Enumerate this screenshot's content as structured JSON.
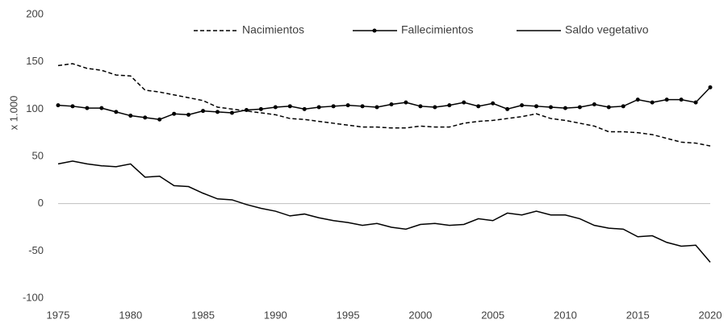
{
  "chart_data": {
    "type": "line",
    "ylabel": "x 1.000",
    "x": [
      1975,
      1976,
      1977,
      1978,
      1979,
      1980,
      1981,
      1982,
      1983,
      1984,
      1985,
      1986,
      1987,
      1988,
      1989,
      1990,
      1991,
      1992,
      1993,
      1994,
      1995,
      1996,
      1997,
      1998,
      1999,
      2000,
      2001,
      2002,
      2003,
      2004,
      2005,
      2006,
      2007,
      2008,
      2009,
      2010,
      2011,
      2012,
      2013,
      2014,
      2015,
      2016,
      2017,
      2018,
      2019,
      2020
    ],
    "series": [
      {
        "name": "Nacimientos",
        "color": "#000000",
        "dash": "dashed",
        "marker": false,
        "values": [
          146,
          148,
          143,
          141,
          136,
          135,
          120,
          118,
          115,
          112,
          109,
          102,
          100,
          98,
          96,
          94,
          90,
          89,
          87,
          85,
          83,
          81,
          81,
          80,
          80,
          82,
          81,
          81,
          85,
          87,
          88,
          90,
          92,
          95,
          90,
          88,
          85,
          82,
          76,
          76,
          75,
          73,
          69,
          65,
          64,
          61
        ]
      },
      {
        "name": "Fallecimientos",
        "color": "#000000",
        "dash": "solid",
        "marker": true,
        "values": [
          104,
          103,
          101,
          101,
          97,
          93,
          91,
          89,
          95,
          94,
          98,
          97,
          96,
          99,
          100,
          102,
          103,
          100,
          102,
          103,
          104,
          103,
          102,
          105,
          107,
          103,
          102,
          104,
          107,
          103,
          106,
          100,
          104,
          103,
          102,
          101,
          102,
          105,
          102,
          103,
          110,
          107,
          110,
          110,
          107,
          123
        ]
      },
      {
        "name": "Saldo vegetativo",
        "color": "#000000",
        "dash": "solid",
        "marker": false,
        "values": [
          42,
          45,
          42,
          40,
          39,
          42,
          28,
          29,
          19,
          18,
          11,
          5,
          4,
          -1,
          -5,
          -8,
          -13,
          -11,
          -15,
          -18,
          -20,
          -23,
          -21,
          -25,
          -27,
          -22,
          -21,
          -23,
          -22,
          -16,
          -18,
          -10,
          -12,
          -8,
          -12,
          -12,
          -16,
          -23,
          -26,
          -27,
          -35,
          -34,
          -41,
          -45,
          -44,
          -62
        ]
      }
    ],
    "xlim": [
      1975,
      2020
    ],
    "xticks": [
      1975,
      1980,
      1985,
      1990,
      1995,
      2000,
      2005,
      2010,
      2015,
      2020
    ],
    "ylim": [
      -100,
      200
    ],
    "yticks": [
      -100,
      -50,
      0,
      50,
      100,
      150,
      200
    ],
    "zero_line": true,
    "legend": "top"
  }
}
